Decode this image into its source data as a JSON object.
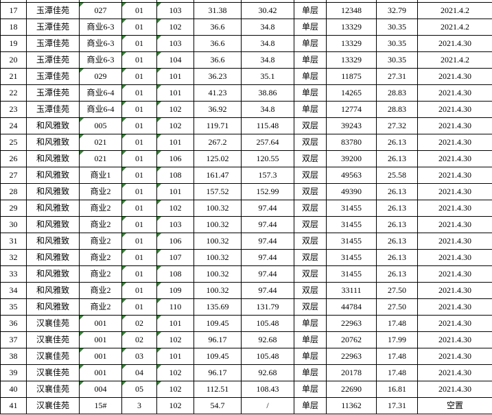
{
  "table": {
    "rows": [
      {
        "no": "17",
        "name": "玉潭佳苑",
        "building": "027",
        "unit": "01",
        "room": "103",
        "area1": "31.38",
        "area2": "30.42",
        "layer": "单层",
        "total": "12348",
        "price": "32.79",
        "date": "2021.4.2",
        "flags": [
          "building",
          "unit",
          "room"
        ]
      },
      {
        "no": "18",
        "name": "玉潭佳苑",
        "building": "商业6-3",
        "unit": "01",
        "room": "102",
        "area1": "36.6",
        "area2": "34.8",
        "layer": "单层",
        "total": "13329",
        "price": "30.35",
        "date": "2021.4.2",
        "flags": [
          "unit",
          "room"
        ]
      },
      {
        "no": "19",
        "name": "玉潭佳苑",
        "building": "商业6-3",
        "unit": "01",
        "room": "103",
        "area1": "36.6",
        "area2": "34.8",
        "layer": "单层",
        "total": "13329",
        "price": "30.35",
        "date": "2021.4.30",
        "flags": [
          "unit",
          "room"
        ]
      },
      {
        "no": "20",
        "name": "玉潭佳苑",
        "building": "商业6-3",
        "unit": "01",
        "room": "104",
        "area1": "36.6",
        "area2": "34.8",
        "layer": "单层",
        "total": "13329",
        "price": "30.35",
        "date": "2021.4.2",
        "flags": [
          "unit",
          "room"
        ]
      },
      {
        "no": "21",
        "name": "玉潭佳苑",
        "building": "029",
        "unit": "01",
        "room": "101",
        "area1": "36.23",
        "area2": "35.1",
        "layer": "单层",
        "total": "11875",
        "price": "27.31",
        "date": "2021.4.30",
        "flags": [
          "building",
          "unit",
          "room"
        ]
      },
      {
        "no": "22",
        "name": "玉潭佳苑",
        "building": "商业6-4",
        "unit": "01",
        "room": "101",
        "area1": "41.23",
        "area2": "38.86",
        "layer": "单层",
        "total": "14265",
        "price": "28.83",
        "date": "2021.4.30",
        "flags": [
          "unit",
          "room"
        ]
      },
      {
        "no": "23",
        "name": "玉潭佳苑",
        "building": "商业6-4",
        "unit": "01",
        "room": "102",
        "area1": "36.92",
        "area2": "34.8",
        "layer": "单层",
        "total": "12774",
        "price": "28.83",
        "date": "2021.4.30",
        "flags": [
          "unit",
          "room"
        ]
      },
      {
        "no": "24",
        "name": "和风雅致",
        "building": "005",
        "unit": "01",
        "room": "102",
        "area1": "119.71",
        "area2": "115.48",
        "layer": "双层",
        "total": "39243",
        "price": "27.32",
        "date": "2021.4.30",
        "flags": [
          "building",
          "unit",
          "room"
        ]
      },
      {
        "no": "25",
        "name": "和风雅致",
        "building": "021",
        "unit": "01",
        "room": "101",
        "area1": "267.2",
        "area2": "257.64",
        "layer": "双层",
        "total": "83780",
        "price": "26.13",
        "date": "2021.4.30",
        "flags": [
          "building",
          "unit",
          "room"
        ]
      },
      {
        "no": "26",
        "name": "和风雅致",
        "building": "021",
        "unit": "01",
        "room": "106",
        "area1": "125.02",
        "area2": "120.55",
        "layer": "双层",
        "total": "39200",
        "price": "26.13",
        "date": "2021.4.30",
        "flags": [
          "building",
          "unit",
          "room"
        ]
      },
      {
        "no": "27",
        "name": "和风雅致",
        "building": "商业1",
        "unit": "01",
        "room": "108",
        "area1": "161.47",
        "area2": "157.3",
        "layer": "双层",
        "total": "49563",
        "price": "25.58",
        "date": "2021.4.30",
        "flags": [
          "unit",
          "room"
        ]
      },
      {
        "no": "28",
        "name": "和风雅致",
        "building": "商业2",
        "unit": "01",
        "room": "101",
        "area1": "157.52",
        "area2": "152.99",
        "layer": "双层",
        "total": "49390",
        "price": "26.13",
        "date": "2021.4.30",
        "flags": [
          "unit",
          "room"
        ]
      },
      {
        "no": "29",
        "name": "和风雅致",
        "building": "商业2",
        "unit": "01",
        "room": "102",
        "area1": "100.32",
        "area2": "97.44",
        "layer": "双层",
        "total": "31455",
        "price": "26.13",
        "date": "2021.4.30",
        "flags": [
          "unit",
          "room"
        ]
      },
      {
        "no": "30",
        "name": "和风雅致",
        "building": "商业2",
        "unit": "01",
        "room": "103",
        "area1": "100.32",
        "area2": "97.44",
        "layer": "双层",
        "total": "31455",
        "price": "26.13",
        "date": "2021.4.30",
        "flags": [
          "unit",
          "room"
        ]
      },
      {
        "no": "31",
        "name": "和风雅致",
        "building": "商业2",
        "unit": "01",
        "room": "106",
        "area1": "100.32",
        "area2": "97.44",
        "layer": "双层",
        "total": "31455",
        "price": "26.13",
        "date": "2021.4.30",
        "flags": [
          "unit",
          "room"
        ]
      },
      {
        "no": "32",
        "name": "和风雅致",
        "building": "商业2",
        "unit": "01",
        "room": "107",
        "area1": "100.32",
        "area2": "97.44",
        "layer": "双层",
        "total": "31455",
        "price": "26.13",
        "date": "2021.4.30",
        "flags": [
          "unit",
          "room"
        ]
      },
      {
        "no": "33",
        "name": "和风雅致",
        "building": "商业2",
        "unit": "01",
        "room": "108",
        "area1": "100.32",
        "area2": "97.44",
        "layer": "双层",
        "total": "31455",
        "price": "26.13",
        "date": "2021.4.30",
        "flags": [
          "unit",
          "room"
        ]
      },
      {
        "no": "34",
        "name": "和风雅致",
        "building": "商业2",
        "unit": "01",
        "room": "109",
        "area1": "100.32",
        "area2": "97.44",
        "layer": "双层",
        "total": "33111",
        "price": "27.50",
        "date": "2021.4.30",
        "flags": [
          "unit",
          "room"
        ]
      },
      {
        "no": "35",
        "name": "和风雅致",
        "building": "商业2",
        "unit": "01",
        "room": "110",
        "area1": "135.69",
        "area2": "131.79",
        "layer": "双层",
        "total": "44784",
        "price": "27.50",
        "date": "2021.4.30",
        "flags": [
          "unit",
          "room"
        ]
      },
      {
        "no": "36",
        "name": "汉襄佳苑",
        "building": "001",
        "unit": "02",
        "room": "101",
        "area1": "109.45",
        "area2": "105.48",
        "layer": "单层",
        "total": "22963",
        "price": "17.48",
        "date": "2021.4.30",
        "flags": [
          "building",
          "unit",
          "room"
        ]
      },
      {
        "no": "37",
        "name": "汉襄佳苑",
        "building": "001",
        "unit": "02",
        "room": "102",
        "area1": "96.17",
        "area2": "92.68",
        "layer": "单层",
        "total": "20762",
        "price": "17.99",
        "date": "2021.4.30",
        "flags": [
          "building",
          "unit",
          "room"
        ]
      },
      {
        "no": "38",
        "name": "汉襄佳苑",
        "building": "001",
        "unit": "03",
        "room": "101",
        "area1": "109.45",
        "area2": "105.48",
        "layer": "单层",
        "total": "22963",
        "price": "17.48",
        "date": "2021.4.30",
        "flags": [
          "building",
          "unit",
          "room"
        ]
      },
      {
        "no": "39",
        "name": "汉襄佳苑",
        "building": "001",
        "unit": "04",
        "room": "102",
        "area1": "96.17",
        "area2": "92.68",
        "layer": "单层",
        "total": "20178",
        "price": "17.48",
        "date": "2021.4.30",
        "flags": [
          "building",
          "unit",
          "room"
        ]
      },
      {
        "no": "40",
        "name": "汉襄佳苑",
        "building": "004",
        "unit": "05",
        "room": "102",
        "area1": "112.51",
        "area2": "108.43",
        "layer": "单层",
        "total": "22690",
        "price": "16.81",
        "date": "2021.4.30",
        "flags": [
          "building",
          "unit",
          "room"
        ]
      },
      {
        "no": "41",
        "name": "汉襄佳苑",
        "building": "15#",
        "unit": "3",
        "room": "102",
        "area1": "54.7",
        "area2": "/",
        "layer": "单层",
        "total": "11362",
        "price": "17.31",
        "date": "空置",
        "flags": []
      }
    ]
  },
  "colors": {
    "flag_green": "#2e8b2e",
    "border": "#000000",
    "background": "#ffffff",
    "text": "#000000"
  }
}
